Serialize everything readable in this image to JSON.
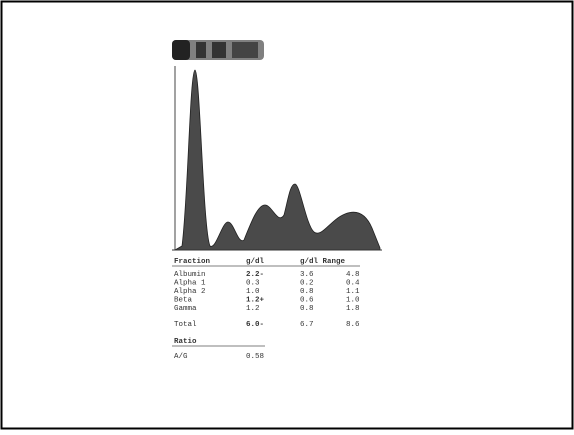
{
  "table": {
    "header": [
      "Fraction",
      "g/dl",
      "g/dl Range"
    ],
    "rows": [
      [
        "Albumin",
        "2.2-",
        "3.6",
        "4.8"
      ],
      [
        "Alpha 1",
        "0.3",
        "0.2",
        "0.4"
      ],
      [
        "Alpha 2",
        "1.0",
        "0.8",
        "1.1"
      ],
      [
        "Beta",
        "1.2+",
        "0.6",
        "1.0"
      ],
      [
        "Gamma",
        "1.2",
        "0.8",
        "1.8"
      ]
    ],
    "total": [
      "Total",
      "6.0-",
      "6.7",
      "8.6"
    ]
  },
  "ratio": {
    "title": "Ratio",
    "label": "A/G",
    "value": "0.58"
  }
}
